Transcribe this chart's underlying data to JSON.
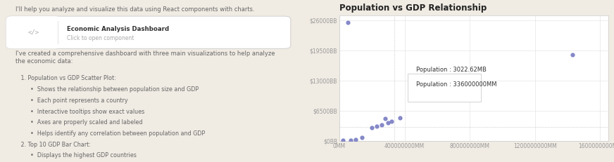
{
  "left_panel": {
    "background_color": "#f0ebe3",
    "text_color": "#666666",
    "intro_text": "I'll help you analyze and visualize this data using React components with charts.",
    "component_box": {
      "title": "Economic Analysis Dashboard",
      "subtitle": "Click to open component",
      "border_color": "#d0d0d0",
      "bg_color": "#ffffff",
      "icon_color": "#999999"
    },
    "body_text": "I've created a comprehensive dashboard with three main visualizations to help analyze\nthe economic data:",
    "list_items": [
      [
        "   1. Population vs GDP Scatter Plot:",
        false
      ],
      [
        "•  Shows the relationship between population size and GDP",
        true
      ],
      [
        "•  Each point represents a country",
        true
      ],
      [
        "•  Interactive tooltips show exact values",
        true
      ],
      [
        "•  Axes are properly scaled and labeled",
        true
      ],
      [
        "•  Helps identify any correlation between population and GDP",
        true
      ],
      [
        "   2. Top 10 GDP Bar Chart:",
        false
      ],
      [
        "•  Displays the highest GDP countries",
        true
      ]
    ]
  },
  "right_panel": {
    "background_color": "#ffffff",
    "title": "Population vs GDP Relationship",
    "title_fontsize": 8.5,
    "dot_color": "#7b7fc4",
    "dot_size": 12,
    "scatter_points": [
      [
        50000000,
        25500
      ],
      [
        1430000000,
        18500
      ],
      [
        70000000,
        200
      ],
      [
        140000000,
        700
      ],
      [
        200000000,
        2800
      ],
      [
        230000000,
        3100
      ],
      [
        260000000,
        3500
      ],
      [
        280000000,
        4800
      ],
      [
        300000000,
        3900
      ],
      [
        320000000,
        4200
      ],
      [
        370000000,
        5000
      ],
      [
        20000000,
        100
      ],
      [
        100000000,
        300
      ]
    ],
    "tooltip": {
      "text_line1": "Population : 336000000MM",
      "text_line2": "Population : 3022.62MB",
      "border_color": "#cccccc",
      "bg_color": "#ffffff"
    },
    "dashed_x": 336000000,
    "dashed_y": 3022,
    "x_ticks": [
      0,
      400000000,
      800000000,
      1200000000,
      1600000000
    ],
    "x_tick_labels": [
      "0MM",
      "400000000MM",
      "800000000MM",
      "1200000000MM",
      "1600000000MM"
    ],
    "y_ticks": [
      0,
      6500,
      13000,
      19500,
      26000
    ],
    "y_tick_labels": [
      "$0BB",
      "$6500BB",
      "$13000BB",
      "$19500BB",
      "$26000BB"
    ],
    "grid_color": "#e0e0e0",
    "axis_color": "#cccccc",
    "tick_label_color": "#999999",
    "tick_label_size": 5.5
  }
}
